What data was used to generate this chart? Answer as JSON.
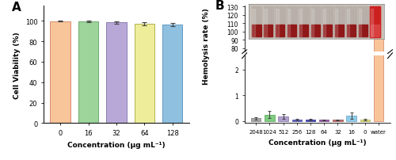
{
  "panel_A": {
    "categories": [
      "0",
      "16",
      "32",
      "64",
      "128"
    ],
    "values": [
      99.8,
      99.5,
      98.5,
      97.2,
      96.3
    ],
    "errors": [
      0.5,
      0.6,
      1.2,
      1.6,
      1.5
    ],
    "bar_colors": [
      "#F8C49A",
      "#9DD49A",
      "#B8A8D8",
      "#EDED9A",
      "#90C0E0"
    ],
    "bar_edge_colors": [
      "#D08060",
      "#60A060",
      "#8070A8",
      "#A8A840",
      "#5090B8"
    ],
    "ylabel": "Cell Viability (%)",
    "xlabel": "Concentration (μg mL⁻¹)",
    "yticks": [
      0,
      20,
      40,
      60,
      80,
      100
    ],
    "label": "A"
  },
  "panel_B": {
    "categories": [
      "2048",
      "1024",
      "512",
      "256",
      "128",
      "64",
      "32",
      "16",
      "0",
      "water"
    ],
    "values": [
      0.1,
      0.25,
      0.18,
      0.06,
      0.06,
      0.04,
      0.04,
      0.2,
      0.05,
      100.0
    ],
    "errors": [
      0.06,
      0.13,
      0.1,
      0.03,
      0.03,
      0.02,
      0.02,
      0.13,
      0.03,
      3.5
    ],
    "bar_colors": [
      "#A8A8A8",
      "#80CC80",
      "#B0A0D0",
      "#6060C0",
      "#4848B0",
      "#9858A8",
      "#C06868",
      "#90CCE8",
      "#E0E080",
      "#F8C49A"
    ],
    "bar_edge_colors": [
      "#787878",
      "#50A050",
      "#8070A0",
      "#4040A0",
      "#282890",
      "#704080",
      "#904848",
      "#60A0C0",
      "#A8A848",
      "#D08060"
    ],
    "ylabel": "Hemolysis rate (%)",
    "xlabel": "Concentration (μg mL⁻¹)",
    "label": "B",
    "lower_yticks": [
      0,
      1,
      2
    ],
    "upper_yticks": [
      80,
      90,
      100,
      110,
      120,
      130
    ]
  }
}
